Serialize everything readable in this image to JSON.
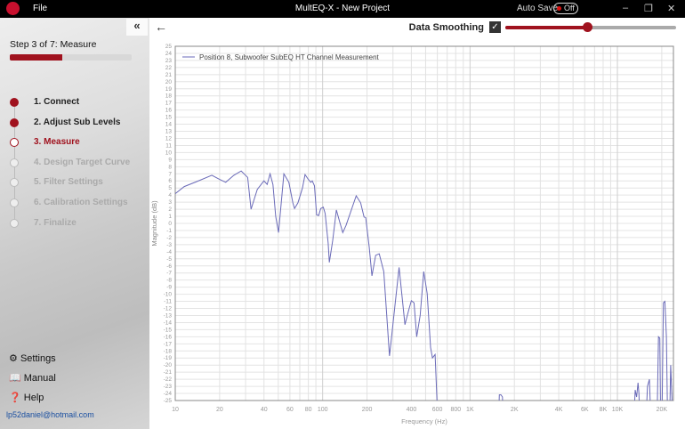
{
  "titlebar": {
    "menu_file": "File",
    "title": "MultEQ-X - New Project",
    "auto_save_label": "Auto Save",
    "auto_save_state": "Off",
    "minimize": "–",
    "restore": "❐",
    "close": "✕"
  },
  "sidebar": {
    "collapse": "«",
    "step_label": "Step 3 of 7: Measure",
    "progress": 0.43,
    "steps": [
      {
        "label": "1.  Connect",
        "state": "done"
      },
      {
        "label": "2.  Adjust Sub Levels",
        "state": "done"
      },
      {
        "label": "3.  Measure",
        "state": "current"
      },
      {
        "label": "4.  Design Target Curve",
        "state": "pending"
      },
      {
        "label": "5.  Filter Settings",
        "state": "pending"
      },
      {
        "label": "6.  Calibration Settings",
        "state": "pending"
      },
      {
        "label": "7.  Finalize",
        "state": "pending"
      }
    ],
    "settings": "Settings",
    "manual": "Manual",
    "help": "Help",
    "email": "lp52daniel@hotmail.com"
  },
  "toolbar": {
    "back": "←",
    "data_smoothing": "Data Smoothing",
    "smoothing_checked": true,
    "smoothing_level": 0.48
  },
  "colors": {
    "accent": "#a0121e",
    "series": "#6a6ab8"
  },
  "chart_data": {
    "type": "line",
    "xlabel": "Frequency (Hz)",
    "ylabel": "Magnitude (dB)",
    "xscale": "log",
    "xlim": [
      10,
      24000
    ],
    "ylim": [
      -25,
      25
    ],
    "grid": true,
    "legend_placement": "top-left",
    "xticks": [
      {
        "v": 10,
        "t": "10"
      },
      {
        "v": 20,
        "t": "20"
      },
      {
        "v": 40,
        "t": "40"
      },
      {
        "v": 60,
        "t": "60"
      },
      {
        "v": 80,
        "t": "80"
      },
      {
        "v": 100,
        "t": "100"
      },
      {
        "v": 200,
        "t": "200"
      },
      {
        "v": 400,
        "t": "400"
      },
      {
        "v": 600,
        "t": "600"
      },
      {
        "v": 800,
        "t": "800"
      },
      {
        "v": 1000,
        "t": "1K"
      },
      {
        "v": 2000,
        "t": "2K"
      },
      {
        "v": 4000,
        "t": "4K"
      },
      {
        "v": 6000,
        "t": "6K"
      },
      {
        "v": 8000,
        "t": "8K"
      },
      {
        "v": 10000,
        "t": "10K"
      },
      {
        "v": 20000,
        "t": "20K"
      }
    ],
    "series": [
      {
        "name": "Position 8, Subwoofer SubEQ HT Channel Measurement",
        "x": [
          10,
          11.5,
          14,
          17.7,
          20,
          22,
          25,
          28,
          31,
          32.7,
          36,
          40,
          42,
          44,
          46,
          48,
          50.2,
          54.6,
          59,
          62.8,
          64.5,
          68,
          73,
          76,
          80,
          83,
          85,
          88,
          91,
          94,
          97,
          101,
          104,
          109,
          111,
          117,
          124,
          131,
          137,
          144,
          169,
          181,
          191,
          196,
          207,
          216,
          229,
          242,
          260,
          284,
          291,
          330,
          362,
          384,
          400,
          417,
          435,
          459,
          485,
          512,
          540,
          556,
          580,
          597,
          610,
          1550,
          1580,
          1620,
          1660,
          1700,
          12800,
          13200,
          13500,
          13800,
          14000,
          14300,
          15500,
          16000,
          16500,
          17000,
          18500,
          19000,
          19400,
          19700,
          20000,
          20500,
          21000,
          21500,
          22000,
          22500,
          23000,
          24000
        ],
        "y": [
          4.2,
          5.2,
          5.9,
          6.8,
          6.2,
          5.8,
          6.8,
          7.4,
          6.5,
          2.0,
          4.8,
          6.0,
          5.5,
          7.0,
          5.5,
          1.0,
          -1.3,
          7.0,
          5.8,
          2.9,
          2.1,
          2.9,
          5.0,
          6.9,
          6.2,
          5.8,
          6.0,
          5.3,
          1.2,
          1.1,
          2.1,
          2.3,
          1.4,
          -2.8,
          -5.5,
          -2.4,
          1.9,
          0.1,
          -1.3,
          -0.3,
          3.9,
          2.9,
          0.9,
          0.8,
          -3.3,
          -7.4,
          -4.5,
          -4.3,
          -6.8,
          -18.7,
          -16.8,
          -6.2,
          -14.3,
          -12.2,
          -10.9,
          -11.2,
          -16,
          -13,
          -6.8,
          -9.9,
          -17.5,
          -19,
          -18.5,
          -25,
          -30,
          -30,
          -24.2,
          -24.2,
          -24.5,
          -30,
          -30,
          -23.5,
          -24.5,
          -22.5,
          -24,
          -30,
          -30,
          -23,
          -22,
          -30,
          -30,
          -16,
          -16.2,
          -30,
          -30,
          -11.2,
          -11,
          -16,
          -30,
          -30,
          -20,
          -30
        ]
      }
    ]
  }
}
